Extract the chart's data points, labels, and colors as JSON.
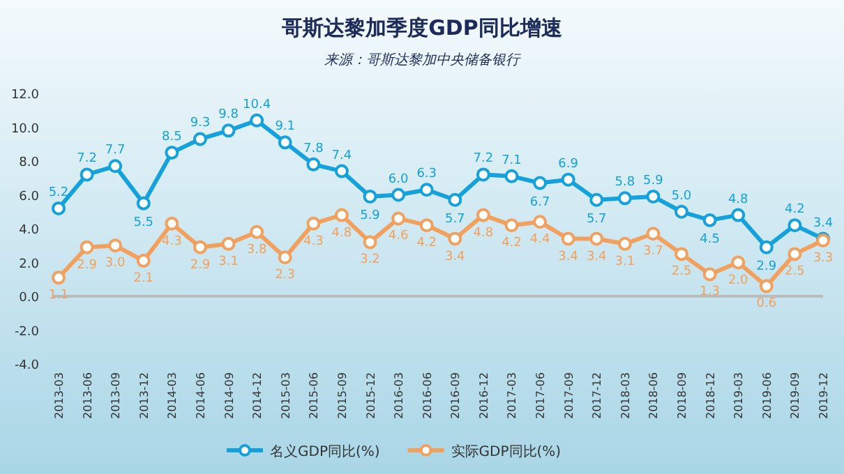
{
  "chart_data": {
    "type": "line",
    "title": "哥斯达黎加季度GDP同比增速",
    "subtitle": "来源：哥斯达黎加中央储备银行",
    "categories": [
      "2013-03",
      "2013-06",
      "2013-09",
      "2013-12",
      "2014-03",
      "2014-06",
      "2014-09",
      "2014-12",
      "2015-03",
      "2015-06",
      "2015-09",
      "2015-12",
      "2016-03",
      "2016-06",
      "2016-09",
      "2016-12",
      "2017-03",
      "2017-06",
      "2017-09",
      "2017-12",
      "2018-03",
      "2018-06",
      "2018-09",
      "2018-12",
      "2019-03",
      "2019-06",
      "2019-09",
      "2019-12"
    ],
    "series": [
      {
        "name": "名义GDP同比(%)",
        "color": "#15a2dc",
        "values": [
          5.2,
          7.2,
          7.7,
          5.5,
          8.5,
          9.3,
          9.8,
          10.4,
          9.1,
          7.8,
          7.4,
          5.9,
          6.0,
          6.3,
          5.7,
          7.2,
          7.1,
          6.7,
          6.9,
          5.7,
          5.8,
          5.9,
          5.0,
          4.5,
          4.8,
          2.9,
          4.2,
          3.4
        ],
        "value_labels": [
          "5.2",
          "7.2",
          "7.7",
          "5.5",
          "8.5",
          "9.3",
          "9.8",
          "10.4",
          "9.1",
          "7.8",
          "7.4",
          "5.9",
          "6.0",
          "6.3",
          "5.7",
          "7.2",
          "7.1",
          "6.7",
          "6.9",
          "5.7",
          "5.8",
          "5.9",
          "5.0",
          "4.5",
          "4.8",
          "2.9",
          "4.2",
          "3.4"
        ]
      },
      {
        "name": "实际GDP同比(%)",
        "color": "#f2a05e",
        "values": [
          1.1,
          2.9,
          3.0,
          2.1,
          4.3,
          2.9,
          3.1,
          3.8,
          2.3,
          4.3,
          4.8,
          3.2,
          4.6,
          4.2,
          3.4,
          4.8,
          4.2,
          4.4,
          3.4,
          3.4,
          3.1,
          3.7,
          2.5,
          1.3,
          2.0,
          0.6,
          2.5,
          3.3
        ],
        "value_labels": [
          "1.1",
          "2.9",
          "3.0",
          "2.1",
          "4.3",
          "2.9",
          "3.1",
          "3.8",
          "2.3",
          "4.3",
          "4.8",
          "3.2",
          "4.6",
          "4.2",
          "3.4",
          "4.8",
          "4.2",
          "4.4",
          "3.4",
          "3.4",
          "3.1",
          "3.7",
          "2.5",
          "1.3",
          "2.0",
          "0.6",
          "2.5",
          "3.3"
        ]
      }
    ],
    "ylim": [
      -4,
      12
    ],
    "yticks": [
      {
        "value": -4,
        "label": "-4.0"
      },
      {
        "value": -2,
        "label": "-2.0"
      },
      {
        "value": 0,
        "label": "0.0"
      },
      {
        "value": 2,
        "label": "2.0"
      },
      {
        "value": 4,
        "label": "4.0"
      },
      {
        "value": 6,
        "label": "6.0"
      },
      {
        "value": 8,
        "label": "8.0"
      },
      {
        "value": 10,
        "label": "10.0"
      },
      {
        "value": 12,
        "label": "12.0"
      }
    ],
    "marker": "circle",
    "line_style": "solid",
    "legend": "bottom"
  }
}
